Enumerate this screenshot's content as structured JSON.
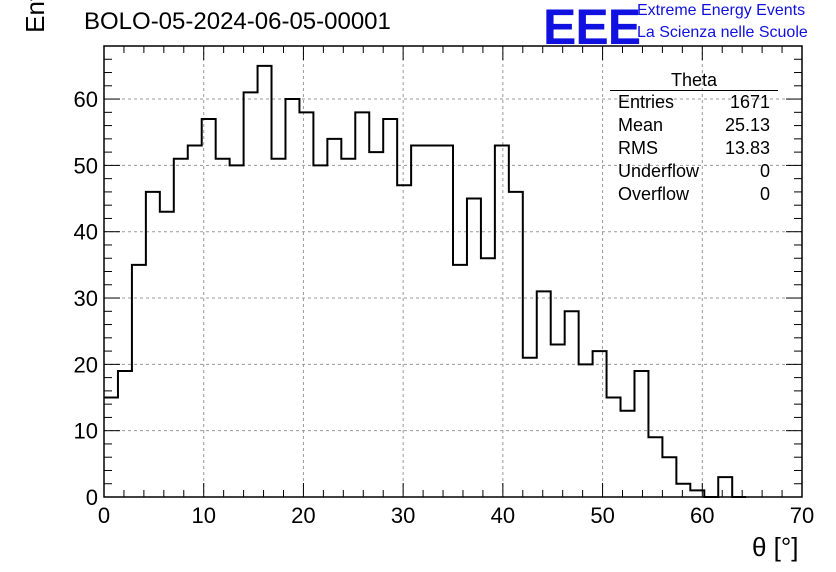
{
  "header": {
    "title": "BOLO-05-2024-06-05-00001",
    "logo_text": "EEE",
    "logo_line1": "Extreme Energy Events",
    "logo_line2": "La Scienza nelle Scuole",
    "logo_color": "#1010e0"
  },
  "stats": {
    "title": "Theta",
    "rows": [
      {
        "label": "Entries",
        "value": "1671"
      },
      {
        "label": "Mean",
        "value": "25.13"
      },
      {
        "label": "RMS",
        "value": "13.83"
      },
      {
        "label": "Underflow",
        "value": "0"
      },
      {
        "label": "Overflow",
        "value": "0"
      }
    ]
  },
  "chart_data": {
    "type": "histogram",
    "xlabel": "θ [°]",
    "ylabel": "Entries/bin",
    "xlim": [
      0,
      70
    ],
    "ylim": [
      0,
      68
    ],
    "bin_width": 1.4,
    "bin_start": 0,
    "values": [
      15,
      19,
      35,
      46,
      43,
      51,
      53,
      57,
      51,
      50,
      61,
      65,
      51,
      60,
      58,
      50,
      54,
      51,
      58,
      52,
      57,
      47,
      53,
      53,
      53,
      35,
      45,
      36,
      53,
      46,
      21,
      31,
      23,
      28,
      20,
      22,
      15,
      13,
      19,
      9,
      6,
      2,
      1,
      0,
      3,
      0
    ],
    "xticks": [
      0,
      10,
      20,
      30,
      40,
      50,
      60,
      70
    ],
    "yticks": [
      0,
      10,
      20,
      30,
      40,
      50,
      60
    ],
    "grid": true,
    "line_color": "#000000"
  }
}
